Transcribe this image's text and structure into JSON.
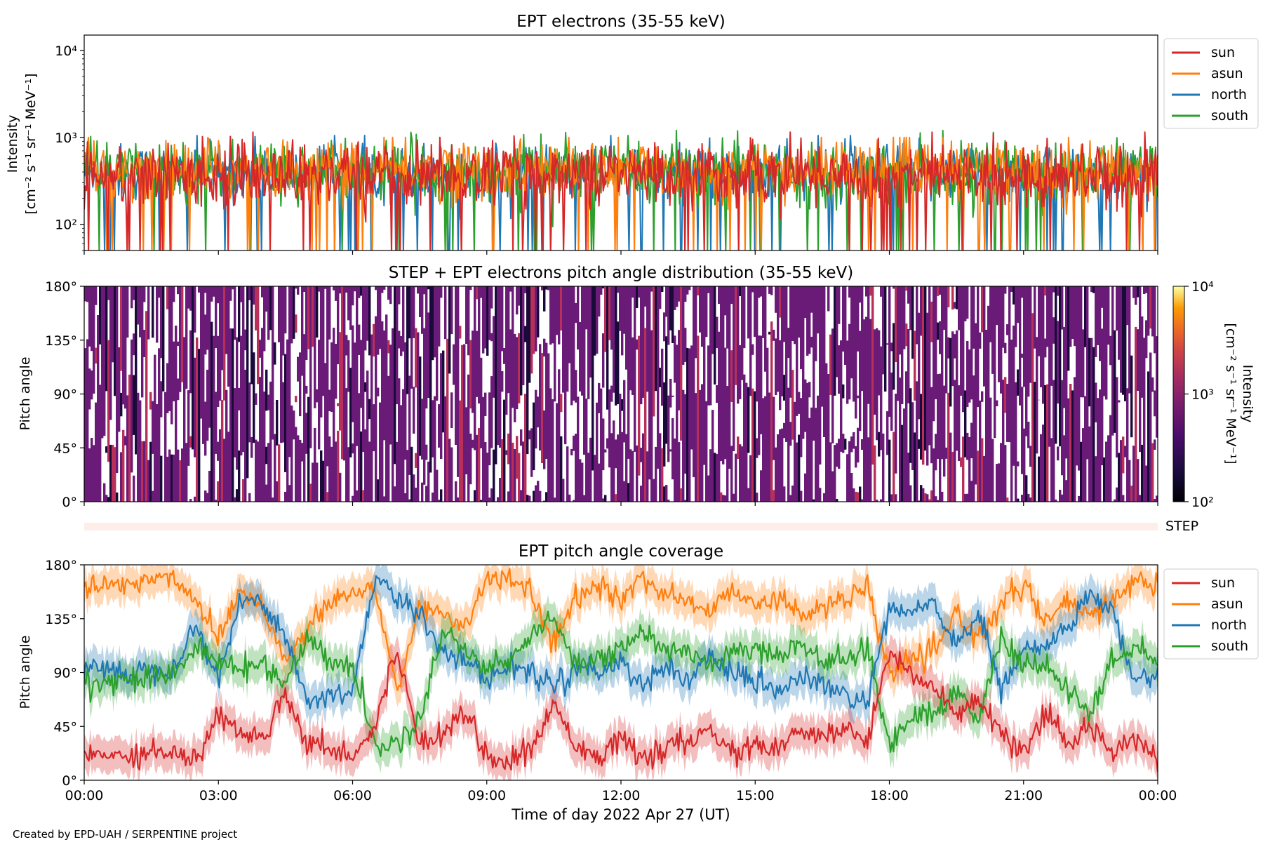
{
  "figure": {
    "credit": "Created by EPD-UAH / SERPENTINE project",
    "xlabel": "Time of day 2022 Apr 27 (UT)",
    "xticks": [
      "00:00",
      "03:00",
      "06:00",
      "09:00",
      "12:00",
      "15:00",
      "18:00",
      "21:00",
      "00:00"
    ]
  },
  "colors": {
    "sun": "#d62728",
    "asun": "#ff7f0e",
    "north": "#1f77b4",
    "south": "#2ca02c",
    "step_bar": "#fdeeea",
    "pad_main": "#6a1b78",
    "pad_dark": "#1a0a3a",
    "pad_red": "#b8305a"
  },
  "chart_data": [
    {
      "type": "line",
      "title": "EPT electrons (35-55 keV)",
      "ylabel_line1": "Intensity",
      "ylabel_line2": "[cm⁻² s⁻¹ sr⁻¹ MeV⁻¹]",
      "yscale": "log",
      "ylim": [
        50,
        15000
      ],
      "yticks": [
        {
          "value": 100,
          "label": "10²"
        },
        {
          "value": 1000,
          "label": "10³"
        },
        {
          "value": 10000,
          "label": "10⁴"
        }
      ],
      "xlim_hours": [
        0,
        24
      ],
      "legend": "outside-right",
      "series": [
        {
          "name": "sun",
          "typical": 380,
          "spread": 0.18,
          "max": 1150
        },
        {
          "name": "asun",
          "typical": 420,
          "spread": 0.17,
          "max": 1000
        },
        {
          "name": "north",
          "typical": 400,
          "spread": 0.16,
          "max": 1050
        },
        {
          "name": "south",
          "typical": 410,
          "spread": 0.17,
          "max": 1200
        }
      ]
    },
    {
      "type": "heatmap",
      "title": "STEP + EPT electrons pitch angle distribution (35-55 keV)",
      "ylabel": "Pitch angle",
      "ylim": [
        0,
        180
      ],
      "yticks": [
        "0°",
        "45°",
        "90°",
        "135°",
        "180°"
      ],
      "colorbar": {
        "label_line1": "Intensity",
        "label_line2": "[cm⁻² s⁻¹ sr⁻¹ MeV⁻¹]",
        "min": 100,
        "max": 10000,
        "scale": "log",
        "ticks": [
          "10²",
          "10³",
          "10⁴"
        ],
        "colormap": "inferno"
      },
      "typical_intensity": 300
    },
    {
      "type": "bar",
      "label": "STEP"
    },
    {
      "type": "line",
      "title": "EPT pitch angle coverage",
      "ylabel": "Pitch angle",
      "ylim": [
        0,
        180
      ],
      "yticks": [
        "0°",
        "45°",
        "90°",
        "135°",
        "180°"
      ],
      "xlim_hours": [
        0,
        24
      ],
      "legend": "outside-right",
      "band_halfwidth_deg": 14,
      "series": [
        {
          "name": "sun",
          "x": [
            0,
            1,
            2,
            2.5,
            3,
            3.5,
            4,
            4.5,
            5,
            5.5,
            6,
            6.5,
            7,
            7.5,
            8,
            8.5,
            9,
            9.5,
            10,
            10.5,
            11,
            11.5,
            12,
            12.5,
            13,
            13.5,
            14,
            14.5,
            15,
            15.5,
            16,
            16.5,
            17,
            17.5,
            18,
            18.5,
            19,
            19.5,
            20,
            20.5,
            21,
            21.5,
            22,
            22.5,
            23,
            23.5,
            24
          ],
          "y": [
            20,
            22,
            25,
            15,
            55,
            40,
            35,
            75,
            30,
            28,
            20,
            45,
            110,
            30,
            40,
            60,
            20,
            15,
            25,
            65,
            30,
            20,
            35,
            15,
            30,
            28,
            45,
            20,
            30,
            25,
            40,
            35,
            45,
            30,
            110,
            90,
            75,
            55,
            65,
            40,
            20,
            55,
            30,
            45,
            25,
            40,
            15
          ]
        },
        {
          "name": "asun",
          "x": [
            0,
            1,
            2,
            2.5,
            3,
            3.5,
            4,
            4.5,
            5,
            5.5,
            6,
            6.5,
            7,
            7.5,
            8,
            8.5,
            9,
            9.5,
            10,
            10.5,
            11,
            11.5,
            12,
            12.5,
            13,
            13.5,
            14,
            14.5,
            15,
            15.5,
            16,
            16.5,
            17,
            17.5,
            18,
            18.5,
            19,
            19.5,
            20,
            20.5,
            21,
            21.5,
            22,
            22.5,
            23,
            23.5,
            24
          ],
          "y": [
            160,
            165,
            170,
            150,
            120,
            160,
            145,
            100,
            125,
            150,
            155,
            160,
            75,
            145,
            140,
            130,
            165,
            170,
            155,
            115,
            150,
            165,
            150,
            170,
            155,
            150,
            140,
            160,
            150,
            150,
            140,
            145,
            150,
            160,
            90,
            100,
            105,
            140,
            120,
            145,
            165,
            130,
            150,
            135,
            150,
            170,
            160
          ]
        },
        {
          "name": "north",
          "x": [
            0,
            1,
            2,
            2.5,
            3,
            3.5,
            4,
            4.5,
            5,
            5.5,
            6,
            6.5,
            7,
            7.5,
            8,
            8.5,
            9,
            9.5,
            10,
            10.5,
            11,
            11.5,
            12,
            12.5,
            13,
            13.5,
            14,
            14.5,
            15,
            15.5,
            16,
            16.5,
            17,
            17.5,
            18,
            18.5,
            19,
            19.5,
            20,
            20.5,
            21,
            21.5,
            22,
            22.5,
            23,
            23.5,
            24
          ],
          "y": [
            95,
            90,
            95,
            130,
            85,
            150,
            150,
            120,
            65,
            70,
            75,
            170,
            150,
            140,
            110,
            100,
            85,
            95,
            90,
            80,
            95,
            90,
            100,
            80,
            95,
            85,
            100,
            90,
            80,
            75,
            85,
            80,
            70,
            65,
            140,
            140,
            150,
            110,
            140,
            75,
            110,
            110,
            130,
            155,
            140,
            80,
            90
          ]
        },
        {
          "name": "south",
          "x": [
            0,
            1,
            2,
            2.5,
            3,
            3.5,
            4,
            4.5,
            5,
            5.5,
            6,
            6.5,
            7,
            7.5,
            8,
            8.5,
            9,
            9.5,
            10,
            10.5,
            11,
            11.5,
            12,
            12.5,
            13,
            13.5,
            14,
            14.5,
            15,
            15.5,
            16,
            16.5,
            17,
            17.5,
            18,
            18.5,
            19,
            19.5,
            20,
            20.5,
            21,
            21.5,
            22,
            22.5,
            23,
            23.5,
            24
          ],
          "y": [
            80,
            85,
            90,
            110,
            100,
            90,
            100,
            80,
            120,
            100,
            95,
            30,
            30,
            50,
            125,
            110,
            95,
            100,
            120,
            135,
            100,
            100,
            110,
            125,
            105,
            110,
            95,
            110,
            110,
            105,
            115,
            100,
            100,
            110,
            30,
            55,
            55,
            75,
            50,
            120,
            95,
            95,
            75,
            55,
            100,
            110,
            100
          ]
        }
      ]
    }
  ]
}
